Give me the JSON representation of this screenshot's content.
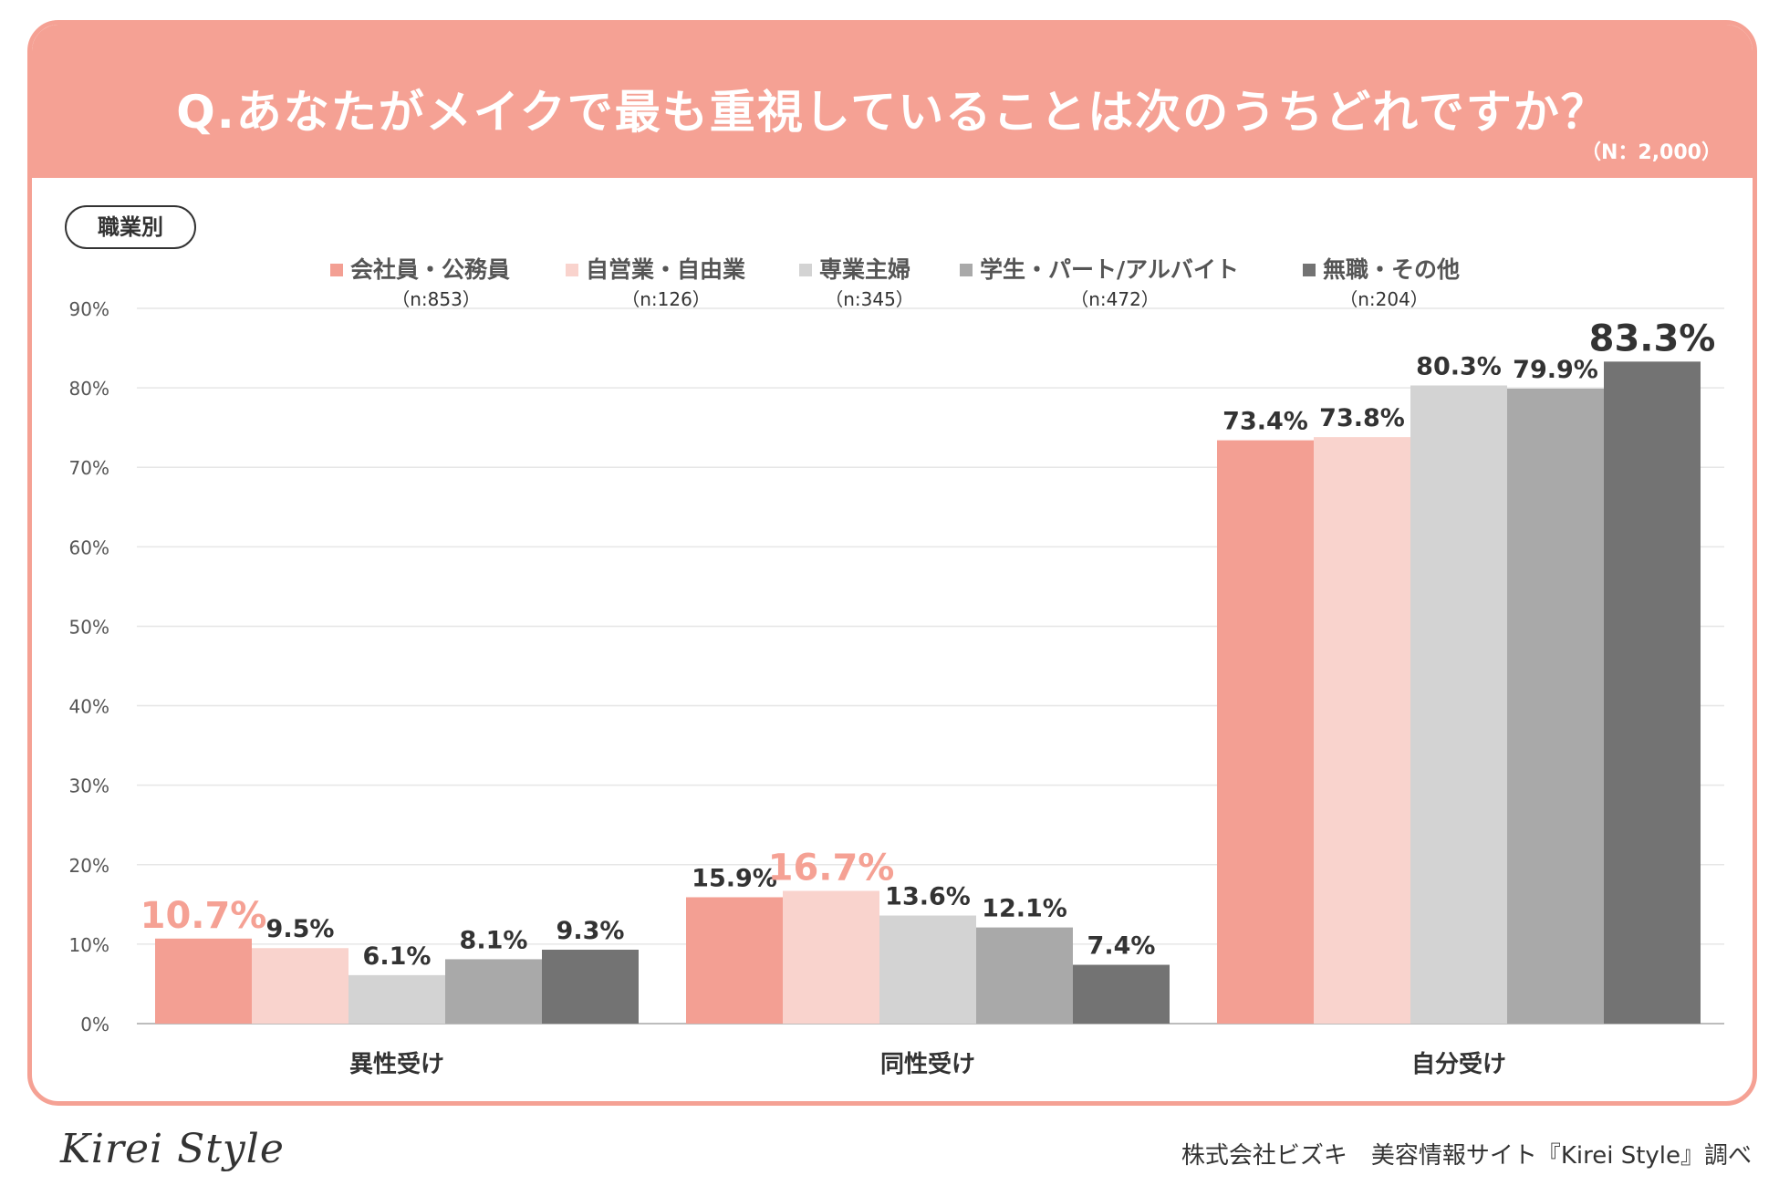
{
  "header": {
    "title": "Q.あなたがメイクで最も重視していることは次のうちどれですか？",
    "n_note": "（N：2,000）"
  },
  "segment_label": "職業別",
  "colors": {
    "header": "#f5a194",
    "highlight_label": "#f5a194",
    "series": [
      "#f39f93",
      "#f9d3cd",
      "#d3d3d3",
      "#a9a9a9",
      "#737373"
    ]
  },
  "chart_data": {
    "type": "bar",
    "categories": [
      "異性受け",
      "同性受け",
      "自分受け"
    ],
    "series": [
      {
        "name": "会社員・公務員",
        "n": "（n:853）",
        "values": [
          10.7,
          15.9,
          73.4
        ]
      },
      {
        "name": "自営業・自由業",
        "n": "（n:126）",
        "values": [
          9.5,
          16.7,
          73.8
        ]
      },
      {
        "name": "専業主婦",
        "n": "（n:345）",
        "values": [
          6.1,
          13.6,
          80.3
        ]
      },
      {
        "name": "学生・パート/アルバイト",
        "n": "（n:472）",
        "values": [
          8.1,
          12.1,
          79.9
        ]
      },
      {
        "name": "無職・その他",
        "n": "（n:204）",
        "values": [
          9.3,
          7.4,
          83.3
        ]
      }
    ],
    "value_labels": [
      [
        "10.7%",
        "15.9%",
        "73.4%"
      ],
      [
        "9.5%",
        "16.7%",
        "73.8%"
      ],
      [
        "6.1%",
        "13.6%",
        "80.3%"
      ],
      [
        "8.1%",
        "12.1%",
        "79.9%"
      ],
      [
        "9.3%",
        "7.4%",
        "83.3%"
      ]
    ],
    "highlights": [
      {
        "series": 0,
        "category": 0
      },
      {
        "series": 1,
        "category": 1
      },
      {
        "series": 4,
        "category": 2
      }
    ],
    "y_ticks": [
      "0%",
      "10%",
      "20%",
      "30%",
      "40%",
      "50%",
      "60%",
      "70%",
      "80%",
      "90%"
    ],
    "ylim": [
      0,
      90
    ],
    "grid": true,
    "legend_position": "top"
  },
  "footer": {
    "logo": "Kirei Style",
    "credit": "株式会社ビズキ　美容情報サイト『Kirei Style』調べ"
  }
}
